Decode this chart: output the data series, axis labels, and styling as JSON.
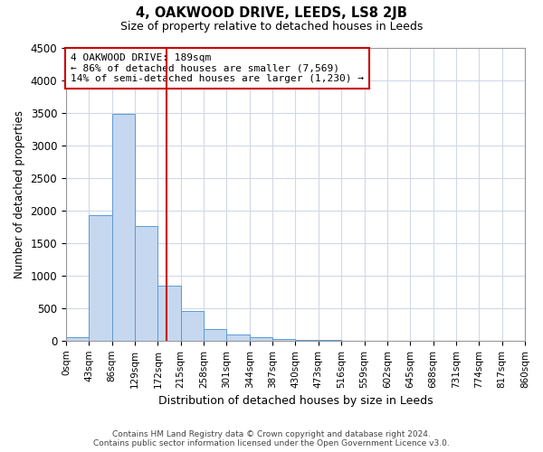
{
  "title": "4, OAKWOOD DRIVE, LEEDS, LS8 2JB",
  "subtitle": "Size of property relative to detached houses in Leeds",
  "xlabel": "Distribution of detached houses by size in Leeds",
  "ylabel": "Number of detached properties",
  "footer_line1": "Contains HM Land Registry data © Crown copyright and database right 2024.",
  "footer_line2": "Contains public sector information licensed under the Open Government Licence v3.0.",
  "annotation_line1": "4 OAKWOOD DRIVE: 189sqm",
  "annotation_line2": "← 86% of detached houses are smaller (7,569)",
  "annotation_line3": "14% of semi-detached houses are larger (1,230) →",
  "property_size": 189,
  "bin_edges": [
    0,
    43,
    86,
    129,
    172,
    215,
    258,
    301,
    344,
    387,
    430,
    473,
    516,
    559,
    602,
    645,
    688,
    731,
    774,
    817,
    860
  ],
  "bar_heights": [
    50,
    1920,
    3480,
    1760,
    840,
    450,
    175,
    90,
    50,
    25,
    10,
    5,
    0,
    0,
    0,
    0,
    0,
    0,
    0,
    0
  ],
  "bar_color": "#C5D8F0",
  "bar_edge_color": "#5B9BD5",
  "vline_color": "#CC0000",
  "vline_x": 189,
  "annotation_box_color": "#CC0000",
  "ylim": [
    0,
    4500
  ],
  "xlim": [
    0,
    860
  ],
  "yticks": [
    0,
    500,
    1000,
    1500,
    2000,
    2500,
    3000,
    3500,
    4000,
    4500
  ],
  "background_color": "#FFFFFF",
  "grid_color": "#D0D8E8"
}
